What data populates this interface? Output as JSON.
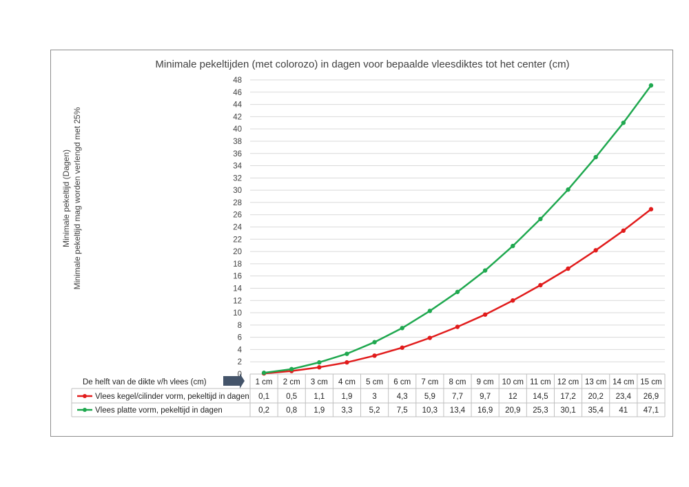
{
  "chart_data": {
    "type": "line",
    "title": "Minimale pekeltijden (met colorozo) in dagen voor bepaalde vleesdiktes tot het center (cm)",
    "ylabel_lines": [
      "Minimale pekeltijd (Dagen)",
      "Minimale pekeltijd  mag worden verlengd met  25%"
    ],
    "xlabel": "De helft van de dikte v/h vlees (cm)",
    "categories": [
      "1 cm",
      "2 cm",
      "3 cm",
      "4 cm",
      "5 cm",
      "6 cm",
      "7 cm",
      "8 cm",
      "9 cm",
      "10 cm",
      "11 cm",
      "12 cm",
      "13 cm",
      "14 cm",
      "15 cm"
    ],
    "ylim": [
      0,
      48
    ],
    "yticks": [
      0,
      2,
      4,
      6,
      8,
      10,
      12,
      14,
      16,
      18,
      20,
      22,
      24,
      26,
      28,
      30,
      32,
      34,
      36,
      38,
      40,
      42,
      44,
      46,
      48
    ],
    "grid": true,
    "legend": "data-table",
    "series": [
      {
        "name": "Vlees kegel/cilinder vorm, pekeltijd in  dagen",
        "color": "#e11b1b",
        "values": [
          0.1,
          0.5,
          1.1,
          1.9,
          3,
          4.3,
          5.9,
          7.7,
          9.7,
          12,
          14.5,
          17.2,
          20.2,
          23.4,
          26.9
        ],
        "labels": [
          "0,1",
          "0,5",
          "1,1",
          "1,9",
          "3",
          "4,3",
          "5,9",
          "7,7",
          "9,7",
          "12",
          "14,5",
          "17,2",
          "20,2",
          "23,4",
          "26,9"
        ]
      },
      {
        "name": "Vlees platte vorm, pekeltijd in dagen",
        "color": "#1fa84f",
        "values": [
          0.2,
          0.8,
          1.9,
          3.3,
          5.2,
          7.5,
          10.3,
          13.4,
          16.9,
          20.9,
          25.3,
          30.1,
          35.4,
          41,
          47.1
        ],
        "labels": [
          "0,2",
          "0,8",
          "1,9",
          "3,3",
          "5,2",
          "7,5",
          "10,3",
          "13,4",
          "16,9",
          "20,9",
          "25,3",
          "30,1",
          "35,4",
          "41",
          "47,1"
        ]
      }
    ]
  }
}
